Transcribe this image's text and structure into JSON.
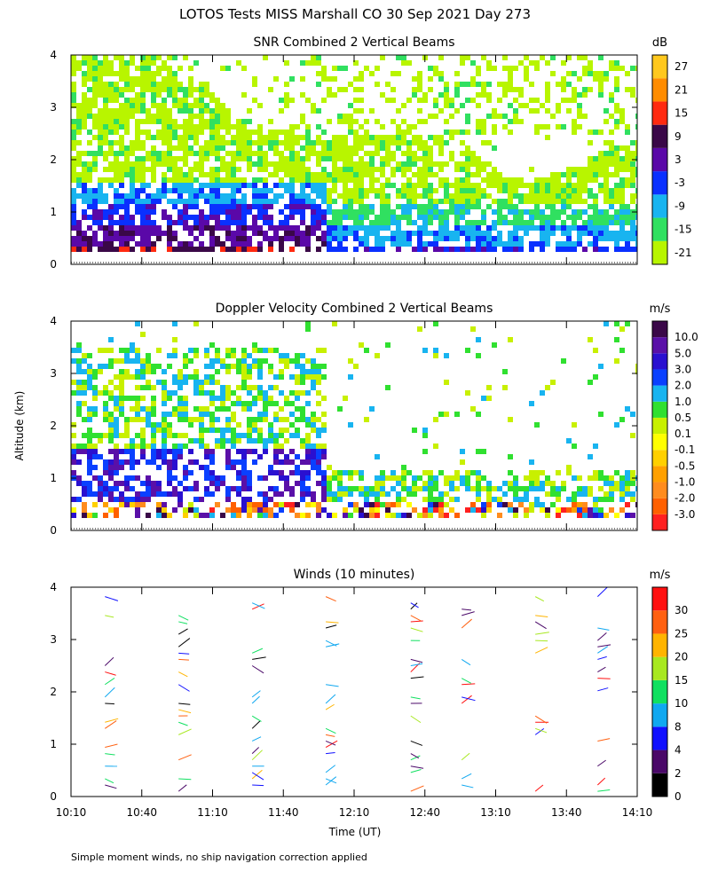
{
  "page_title": "LOTOS Tests MISS Marshall CO  30 Sep 2021 Day 273",
  "y_axis_label": "Altitude (km)",
  "x_axis_label": "Time (UT)",
  "footnote": "Simple moment winds, no ship navigation correction applied",
  "chart_data": [
    {
      "type": "heatmap",
      "title": "SNR Combined 2 Vertical Beams",
      "unit": "dB",
      "x_ticks": [],
      "ylim": [
        0,
        4
      ],
      "y_ticks": [
        "0",
        "1",
        "2",
        "3",
        "4"
      ],
      "colorbar": {
        "colors": [
          "#b8f500",
          "#30e060",
          "#18b4f0",
          "#0a30ff",
          "#5a08a8",
          "#3a0848",
          "#ff2a10",
          "#ff8c00",
          "#ffc81e"
        ],
        "labels": [
          "-21",
          "-15",
          "-9",
          "-3",
          "3",
          "9",
          "15",
          "21",
          "27"
        ]
      }
    },
    {
      "type": "heatmap",
      "title": "Doppler Velocity Combined 2 Vertical Beams",
      "unit": "m/s",
      "x_ticks": [],
      "ylim": [
        0,
        4
      ],
      "y_ticks": [
        "0",
        "1",
        "2",
        "3",
        "4"
      ],
      "colorbar": {
        "colors": [
          "#ff2020",
          "#ff6000",
          "#ff8c1e",
          "#ffa000",
          "#ffd000",
          "#ffff00",
          "#c8f000",
          "#30e030",
          "#18b4f0",
          "#0a40ff",
          "#2a10d0",
          "#5a10a8",
          "#3a0848"
        ],
        "labels": [
          "-3.0",
          "-2.0",
          "-1.0",
          "-0.5",
          "-0.1",
          "0.1",
          "0.5",
          "1.0",
          "2.0",
          "3.0",
          "5.0",
          "10.0"
        ]
      }
    },
    {
      "type": "scatter",
      "title": "Winds (10 minutes)",
      "unit": "m/s",
      "x_ticks": [
        "10:10",
        "10:40",
        "11:10",
        "11:40",
        "12:10",
        "12:40",
        "13:10",
        "13:40",
        "14:10"
      ],
      "ylim": [
        0,
        4
      ],
      "y_ticks": [
        "0",
        "1",
        "2",
        "3",
        "4"
      ],
      "colorbar": {
        "colors": [
          "#000000",
          "#4a0868",
          "#1010ff",
          "#10a8f0",
          "#10e060",
          "#a8e820",
          "#ffb400",
          "#ff6010",
          "#ff1010"
        ],
        "labels": [
          "0",
          "2",
          "4",
          "8",
          "10",
          "15",
          "20",
          "25",
          "30"
        ]
      }
    }
  ]
}
